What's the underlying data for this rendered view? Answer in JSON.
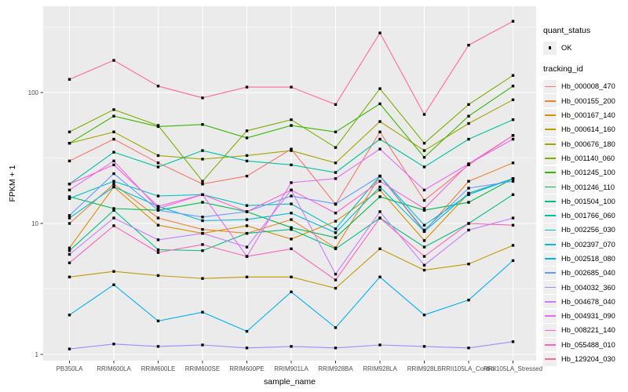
{
  "legend": {
    "quant_status_title": "quant_status",
    "ok_label": "OK",
    "tracking_id_title": "tracking_id"
  },
  "style": {
    "panel_bg": "#EBEBEB",
    "grid_color": "#FFFFFF",
    "tick_label_color": "#4D4D4D",
    "tick_mark_color": "#333333",
    "point_color": "#000000",
    "legend_key_bg": "#EFEFEF"
  },
  "chart_data": {
    "type": "line",
    "title": "",
    "legend_position": "right",
    "grid": true,
    "point_marker": {
      "shape": "filled-square",
      "color": "#000000",
      "legend_label": "OK"
    },
    "x_axis": {
      "label": "sample_name",
      "categories": [
        "PB350LA",
        "RRIM600LA",
        "RRIM600LE",
        "RRIM600SE",
        "RRIM600PE",
        "RRIM901LA",
        "RRIM928BA",
        "RRIM928LA",
        "RRIM928LB",
        "RRII105LA_Control",
        "RRII105LA_Stressed"
      ]
    },
    "y_axis": {
      "label": "FPKM + 1",
      "scale": "log10",
      "ticks": [
        1,
        10,
        100
      ],
      "minor_gridlines": [
        3.162,
        31.62,
        316.2
      ],
      "range": [
        0.9,
        443
      ]
    },
    "series": [
      {
        "tracking_id": "Hb_000008_470",
        "color": "#F8766D",
        "values": [
          30,
          44,
          29,
          20,
          23,
          37,
          14,
          50,
          15,
          28,
          47
        ]
      },
      {
        "tracking_id": "Hb_000155_200",
        "color": "#EA8331",
        "values": [
          10,
          20,
          11,
          9,
          8.4,
          10.7,
          6.5,
          23,
          8.7,
          21,
          29
        ]
      },
      {
        "tracking_id": "Hb_000167_140",
        "color": "#D89000",
        "values": [
          6.5,
          19,
          9.7,
          8.4,
          9.6,
          7.6,
          10.4,
          18,
          7.4,
          17,
          22
        ]
      },
      {
        "tracking_id": "Hb_000614_160",
        "color": "#C09B00",
        "values": [
          3.9,
          4.3,
          4.0,
          3.8,
          3.9,
          3.9,
          3.2,
          6.4,
          4.4,
          4.9,
          6.8
        ]
      },
      {
        "tracking_id": "Hb_000676_180",
        "color": "#A3A500",
        "values": [
          41,
          50,
          33,
          31,
          33,
          36,
          29,
          60,
          36,
          58,
          88
        ]
      },
      {
        "tracking_id": "Hb_001140_060",
        "color": "#7CAE00",
        "values": [
          50,
          74,
          56,
          21,
          51,
          62,
          38,
          107,
          41,
          81,
          135
        ]
      },
      {
        "tracking_id": "Hb_001245_100",
        "color": "#39B600",
        "values": [
          41,
          66,
          55,
          57,
          45,
          56,
          50,
          82,
          32,
          66,
          112
        ]
      },
      {
        "tracking_id": "Hb_001246_110",
        "color": "#00BB4E",
        "values": [
          16,
          13,
          12.6,
          14.5,
          12.3,
          9.3,
          7.8,
          16,
          12.6,
          14.5,
          22
        ]
      },
      {
        "tracking_id": "Hb_001504_100",
        "color": "#00BF7D",
        "values": [
          6.2,
          12.6,
          6.3,
          6.2,
          8.4,
          9.0,
          6.4,
          11,
          6.6,
          10,
          16.6
        ]
      },
      {
        "tracking_id": "Hb_001766_060",
        "color": "#00C1A3",
        "values": [
          20,
          35,
          27,
          36,
          30,
          28,
          24.5,
          44,
          27,
          44,
          62
        ]
      },
      {
        "tracking_id": "Hb_002256_030",
        "color": "#00BFC4",
        "values": [
          15.5,
          21,
          16.2,
          16.6,
          13.7,
          14.1,
          9.1,
          23,
          9.7,
          16.6,
          22
        ]
      },
      {
        "tracking_id": "Hb_002397_070",
        "color": "#00BBDA",
        "values": [
          11,
          19,
          13.5,
          10.5,
          10.7,
          12,
          8.5,
          19,
          8.7,
          17,
          22
        ]
      },
      {
        "tracking_id": "Hb_002518_080",
        "color": "#00B0F6",
        "values": [
          2.0,
          3.4,
          1.8,
          2.1,
          1.5,
          3.0,
          1.6,
          3.9,
          2.0,
          2.6,
          5.2
        ]
      },
      {
        "tracking_id": "Hb_002685_040",
        "color": "#619CFF",
        "values": [
          11.5,
          24,
          12.6,
          11.2,
          12.3,
          16.2,
          14.1,
          23,
          8.9,
          18.6,
          21
        ]
      },
      {
        "tracking_id": "Hb_004032_360",
        "color": "#9590FF",
        "values": [
          1.1,
          1.2,
          1.15,
          1.18,
          1.12,
          1.15,
          1.12,
          1.18,
          1.15,
          1.12,
          1.25
        ]
      },
      {
        "tracking_id": "Hb_004678_040",
        "color": "#C77CFF",
        "values": [
          5.8,
          11,
          7.5,
          8.4,
          6.6,
          18,
          4.1,
          12.3,
          4.8,
          8.9,
          11
        ]
      },
      {
        "tracking_id": "Hb_004931_090",
        "color": "#E76BF3",
        "values": [
          18,
          30,
          13,
          16.6,
          5.6,
          20.5,
          22,
          37,
          18,
          28.5,
          44
        ]
      },
      {
        "tracking_id": "Hb_008221_140",
        "color": "#FD61D1",
        "values": [
          20,
          28,
          13.5,
          16.6,
          12.3,
          18,
          12,
          21,
          13,
          28.5,
          47
        ]
      },
      {
        "tracking_id": "Hb_055488_010",
        "color": "#FF62BC",
        "values": [
          5.0,
          9.6,
          6.0,
          6.9,
          5.6,
          6.4,
          3.7,
          11,
          5.6,
          10,
          9.7
        ]
      },
      {
        "tracking_id": "Hb_129204_030",
        "color": "#FF6A98",
        "values": [
          126,
          176,
          112,
          91,
          110,
          110,
          81,
          285,
          68,
          230,
          350
        ]
      }
    ]
  }
}
